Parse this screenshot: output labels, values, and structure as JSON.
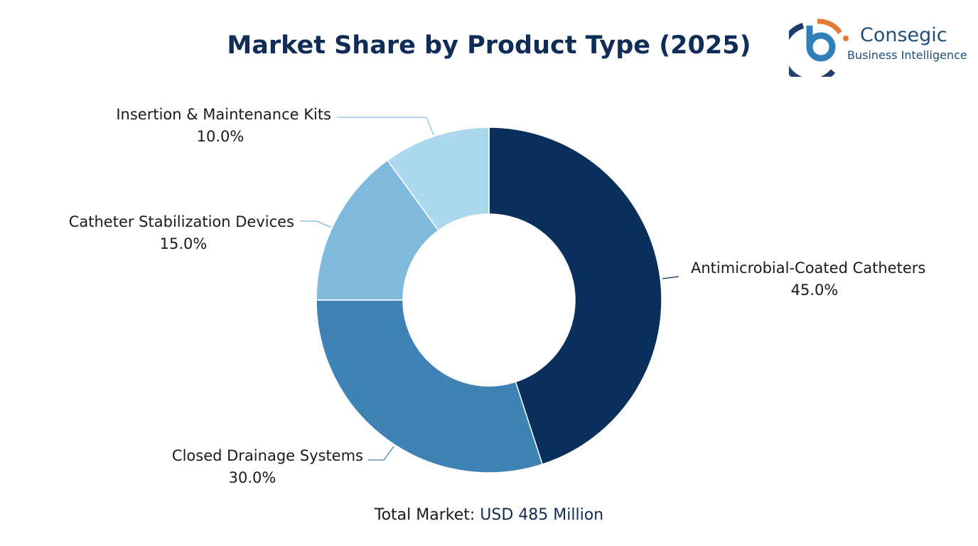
{
  "chart_data": {
    "type": "pie",
    "title": "Market Share by Product Type (2025)",
    "donut": true,
    "categories": [
      "Antimicrobial-Coated Catheters",
      "Closed Drainage Systems",
      "Catheter Stabilization Devices",
      "Insertion & Maintenance Kits"
    ],
    "values": [
      45.0,
      30.0,
      15.0,
      10.0
    ],
    "labels": [
      "45.0%",
      "30.0%",
      "15.0%",
      "10.0%"
    ],
    "colors": [
      "#0a2f5c",
      "#3f82b5",
      "#7fbadc",
      "#acd8ee"
    ],
    "start": "top",
    "direction": "clockwise"
  },
  "footer": {
    "prefix": "Total Market: ",
    "value": "USD 485 Million"
  },
  "logo": {
    "name": "Consegic",
    "tagline": "Business Intelligence",
    "colors": {
      "blue": "#1f4e7a",
      "orange": "#e07a35"
    }
  }
}
